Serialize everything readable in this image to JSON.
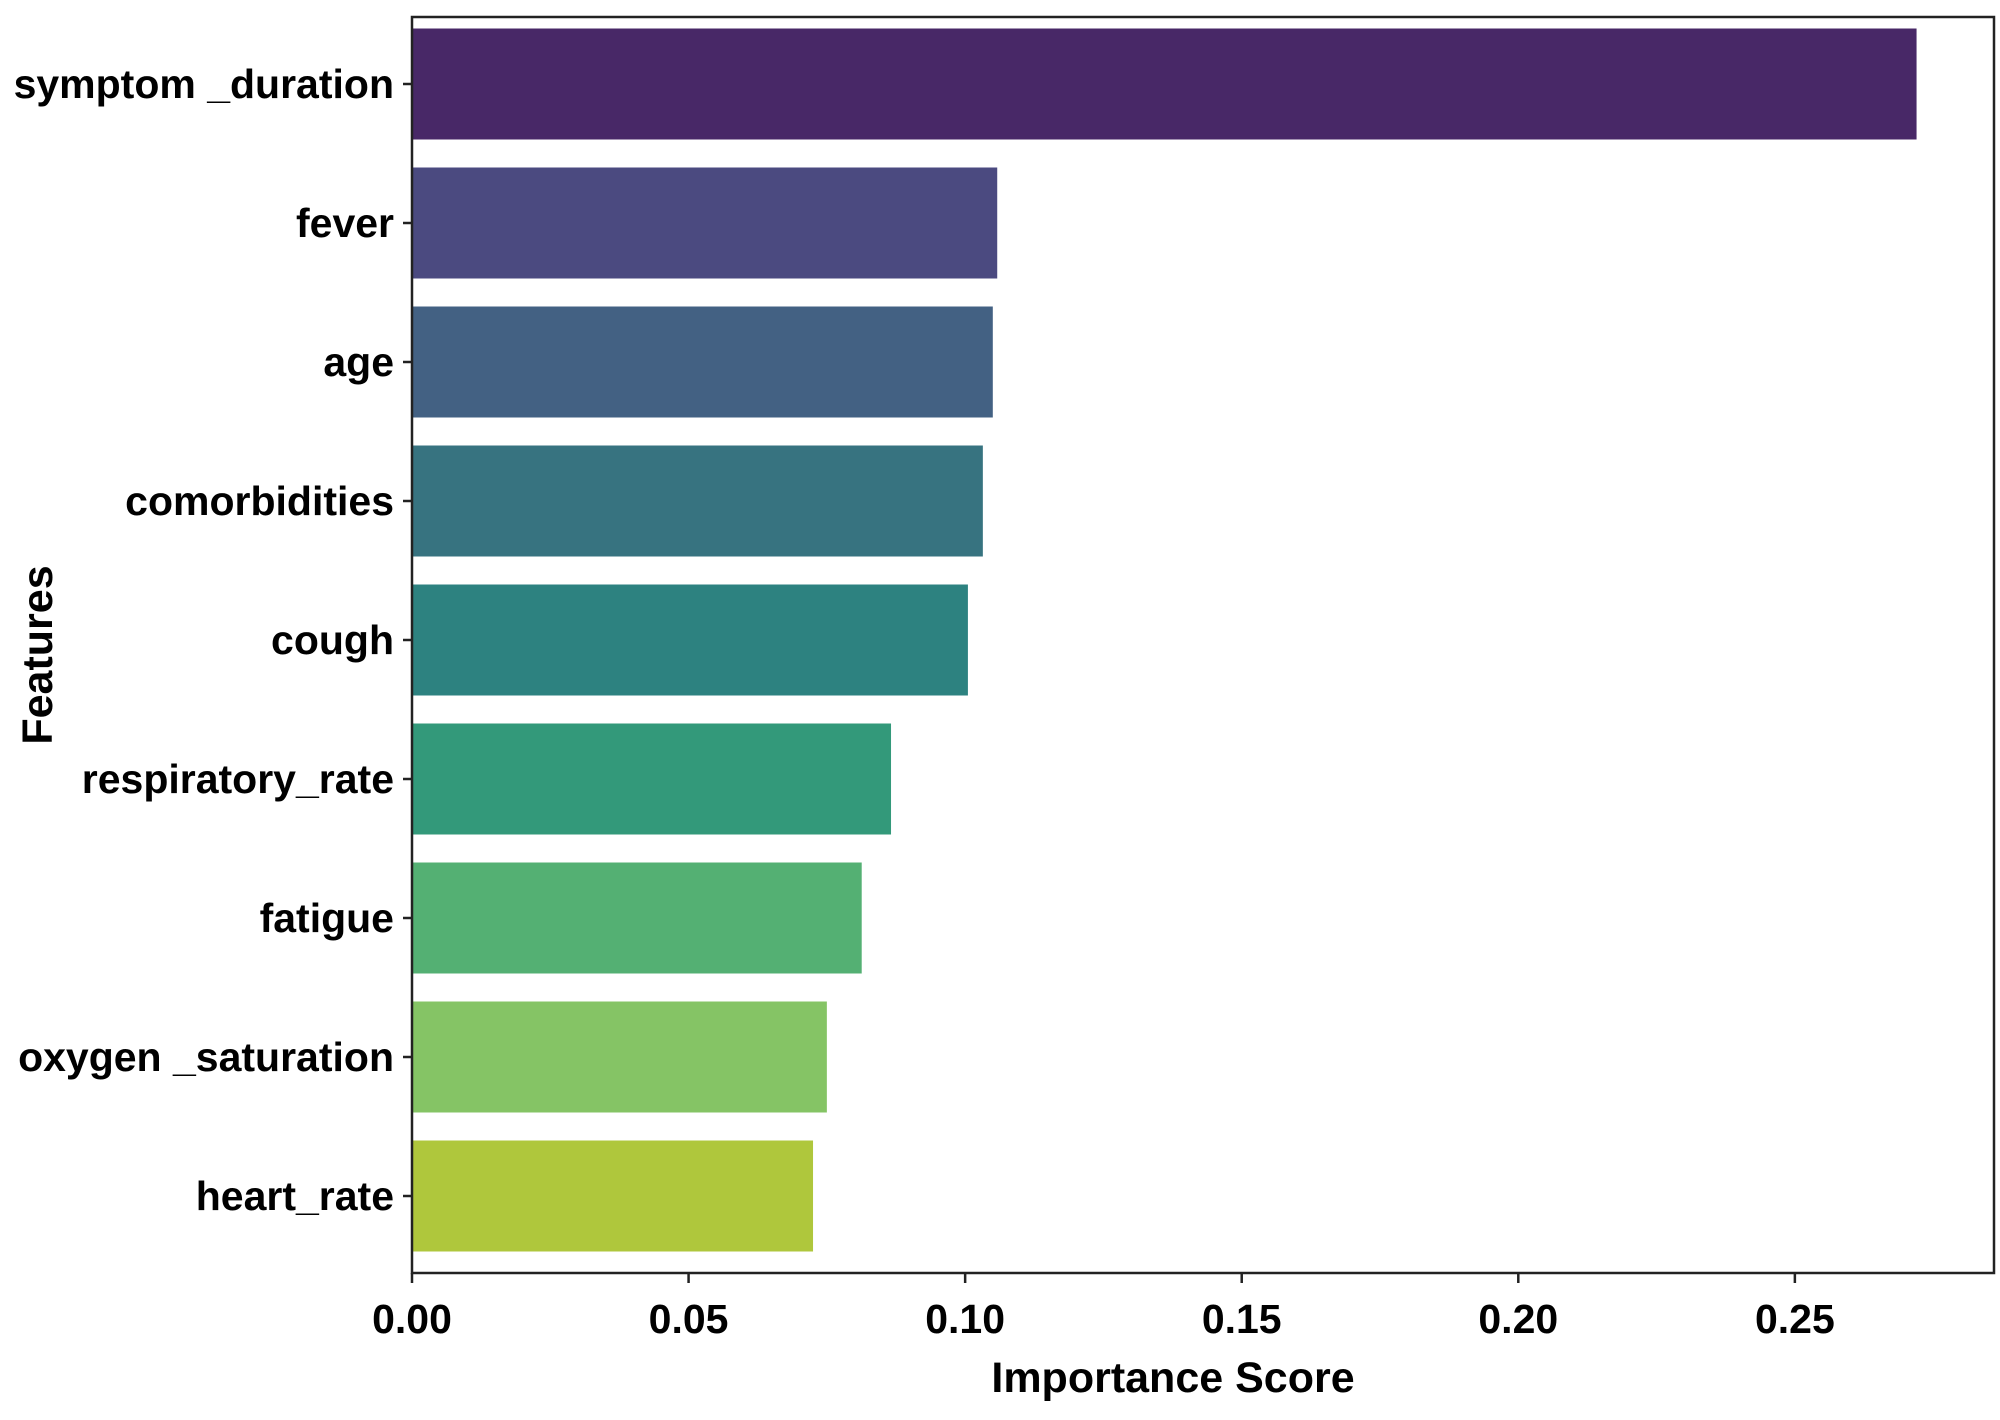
{
  "chart_data": {
    "type": "bar",
    "orientation": "horizontal",
    "categories": [
      "symptom _duration",
      "fever",
      "age",
      "comorbidities",
      "cough",
      "respiratory_rate",
      "fatigue",
      "oxygen _saturation",
      "heart_rate"
    ],
    "values": [
      0.272,
      0.1058,
      0.105,
      0.1032,
      0.1005,
      0.0866,
      0.0813,
      0.075,
      0.0725
    ],
    "colors": [
      "#482867",
      "#4b4a80",
      "#436183",
      "#377380",
      "#2d8280",
      "#33997a",
      "#54b073",
      "#85c465",
      "#afc73c"
    ],
    "title": "",
    "xlabel": "Importance Score",
    "ylabel": "Features",
    "xlim": [
      0,
      0.286
    ],
    "xticks": [
      0.0,
      0.05,
      0.1,
      0.15,
      0.2,
      0.25
    ],
    "xtick_labels": [
      "0.00",
      "0.05",
      "0.10",
      "0.15",
      "0.20",
      "0.25"
    ],
    "grid": false,
    "legend": "none"
  }
}
